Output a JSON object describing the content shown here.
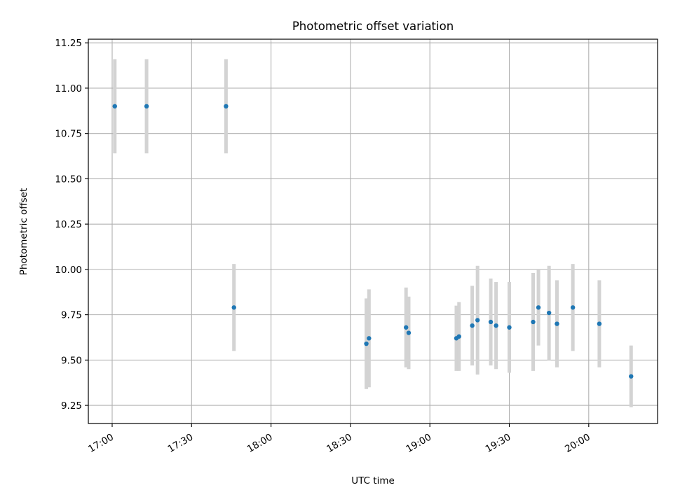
{
  "chart_data": {
    "type": "scatter",
    "title": "Photometric offset variation",
    "xlabel": "UTC time",
    "ylabel": "Photometric offset",
    "x_ticks": [
      "17:00",
      "17:30",
      "18:00",
      "18:30",
      "19:00",
      "19:30",
      "20:00"
    ],
    "y_ticks": [
      "9.25",
      "9.50",
      "9.75",
      "10.00",
      "10.25",
      "10.50",
      "10.75",
      "11.00",
      "11.25"
    ],
    "xlim": [
      "16:51",
      "20:26"
    ],
    "ylim": [
      9.15,
      11.27
    ],
    "grid": true,
    "colors": {
      "points": "#1f77b4",
      "errorbars": "#d3d3d3"
    },
    "series": [
      {
        "points": [
          {
            "x": "17:01",
            "y": 10.9,
            "err": 0.26
          },
          {
            "x": "17:13",
            "y": 10.9,
            "err": 0.26
          },
          {
            "x": "17:43",
            "y": 10.9,
            "err": 0.26
          },
          {
            "x": "17:46",
            "y": 9.79,
            "err": 0.24
          },
          {
            "x": "18:36",
            "y": 9.59,
            "err": 0.25
          },
          {
            "x": "18:37",
            "y": 9.62,
            "err": 0.27
          },
          {
            "x": "18:51",
            "y": 9.68,
            "err": 0.22
          },
          {
            "x": "18:52",
            "y": 9.65,
            "err": 0.2
          },
          {
            "x": "19:10",
            "y": 9.62,
            "err": 0.18
          },
          {
            "x": "19:11",
            "y": 9.63,
            "err": 0.19
          },
          {
            "x": "19:16",
            "y": 9.69,
            "err": 0.22
          },
          {
            "x": "19:18",
            "y": 9.72,
            "err": 0.3
          },
          {
            "x": "19:23",
            "y": 9.71,
            "err": 0.24
          },
          {
            "x": "19:25",
            "y": 9.69,
            "err": 0.24
          },
          {
            "x": "19:30",
            "y": 9.68,
            "err": 0.25
          },
          {
            "x": "19:39",
            "y": 9.71,
            "err": 0.27
          },
          {
            "x": "19:41",
            "y": 9.79,
            "err": 0.21
          },
          {
            "x": "19:45",
            "y": 9.76,
            "err": 0.26
          },
          {
            "x": "19:48",
            "y": 9.7,
            "err": 0.24
          },
          {
            "x": "19:54",
            "y": 9.79,
            "err": 0.24
          },
          {
            "x": "20:04",
            "y": 9.7,
            "err": 0.24
          },
          {
            "x": "20:16",
            "y": 9.41,
            "err": 0.17
          }
        ]
      }
    ]
  }
}
